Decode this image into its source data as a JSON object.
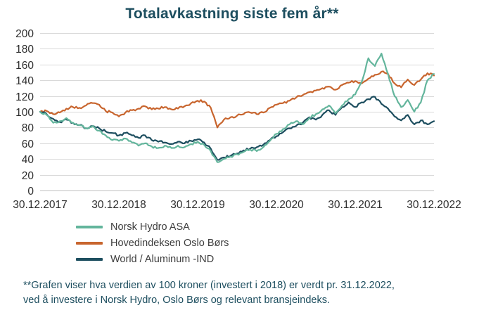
{
  "title": "Totalavkastning siste fem år**",
  "footnote": {
    "line1": "**Grafen viser hva verdien av 100 kroner (investert i 2018) er verdt pr. 31.12.2022,",
    "line2": "ved å investere i Norsk Hydro, Oslo Børs og relevant bransjeindeks."
  },
  "colors": {
    "title_text": "#1d4e5f",
    "footnote_text": "#1d4e5f",
    "axis_text": "#2e2e2e",
    "grid": "#d9d9d9",
    "axis_line": "#bfbfbf"
  },
  "chart_data": {
    "type": "line",
    "title": "Totalavkastning siste fem år**",
    "x_unit": "months_since_30.12.2017",
    "x_max": 60,
    "x_tick_positions": [
      0,
      12,
      24,
      36,
      48,
      60
    ],
    "x_tick_labels": [
      "30.12.2017",
      "30.12.2018",
      "30.12.2019",
      "30.12.2020",
      "30.12.2021",
      "30.12.2022"
    ],
    "ylim": [
      0,
      200
    ],
    "y_ticks": [
      0,
      20,
      40,
      60,
      80,
      100,
      120,
      140,
      160,
      180,
      200
    ],
    "grid": "horizontal",
    "legend_position": "bottom-left",
    "series": [
      {
        "name": "Norsk Hydro ASA",
        "color": "#63b59c",
        "values": [
          100,
          96,
          86,
          88,
          92,
          86,
          83,
          79,
          82,
          76,
          70,
          64,
          63,
          66,
          61,
          57,
          60,
          56,
          54,
          57,
          54,
          57,
          55,
          59,
          62,
          58,
          50,
          36,
          40,
          43,
          46,
          49,
          52,
          50,
          55,
          63,
          72,
          78,
          84,
          88,
          84,
          92,
          97,
          103,
          108,
          98,
          108,
          116,
          122,
          138,
          168,
          158,
          174,
          148,
          120,
          106,
          115,
          100,
          112,
          140,
          148
        ]
      },
      {
        "name": "Hovedindeksen Oslo Børs",
        "color": "#c8652e",
        "values": [
          100,
          101,
          97,
          99,
          104,
          106,
          105,
          108,
          111,
          109,
          101,
          99,
          94,
          99,
          102,
          104,
          107,
          103,
          104,
          106,
          103,
          104,
          107,
          111,
          114,
          113,
          105,
          80,
          90,
          93,
          95,
          97,
          99,
          97,
          99,
          105,
          109,
          111,
          114,
          118,
          121,
          125,
          127,
          130,
          132,
          128,
          134,
          137,
          139,
          136,
          142,
          147,
          151,
          148,
          136,
          131,
          141,
          134,
          141,
          149,
          146
        ]
      },
      {
        "name": "World / Aluminum -IND",
        "color": "#1d4e5f",
        "values": [
          100,
          97,
          91,
          87,
          90,
          86,
          83,
          79,
          82,
          79,
          75,
          73,
          70,
          73,
          70,
          67,
          70,
          64,
          62,
          61,
          59,
          62,
          60,
          63,
          65,
          61,
          53,
          39,
          42,
          44,
          47,
          51,
          53,
          55,
          58,
          64,
          69,
          74,
          79,
          82,
          86,
          93,
          90,
          96,
          102,
          96,
          106,
          112,
          106,
          112,
          116,
          119,
          110,
          104,
          94,
          89,
          96,
          84,
          89,
          84,
          88
        ]
      }
    ]
  }
}
